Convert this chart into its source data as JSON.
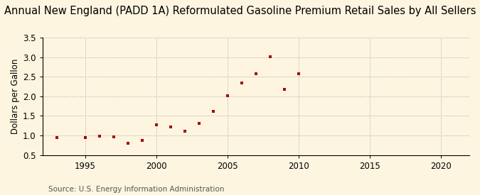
{
  "title": "Annual New England (PADD 1A) Reformulated Gasoline Premium Retail Sales by All Sellers",
  "ylabel": "Dollars per Gallon",
  "source": "Source: U.S. Energy Information Administration",
  "background_color": "#fdf5e0",
  "marker_color": "#aa0000",
  "years": [
    1993,
    1995,
    1996,
    1997,
    1998,
    1999,
    2000,
    2001,
    2002,
    2003,
    2004,
    2005,
    2006,
    2007,
    2008,
    2009,
    2010
  ],
  "values": [
    0.94,
    0.95,
    0.98,
    0.97,
    0.8,
    0.88,
    1.27,
    1.22,
    1.11,
    1.31,
    1.62,
    2.01,
    2.35,
    2.57,
    3.01,
    2.17,
    2.58
  ],
  "xlim": [
    1992,
    2022
  ],
  "ylim": [
    0.5,
    3.5
  ],
  "xticks": [
    1995,
    2000,
    2005,
    2010,
    2015,
    2020
  ],
  "yticks": [
    0.5,
    1.0,
    1.5,
    2.0,
    2.5,
    3.0,
    3.5
  ],
  "title_fontsize": 10.5,
  "label_fontsize": 8.5,
  "source_fontsize": 7.5
}
